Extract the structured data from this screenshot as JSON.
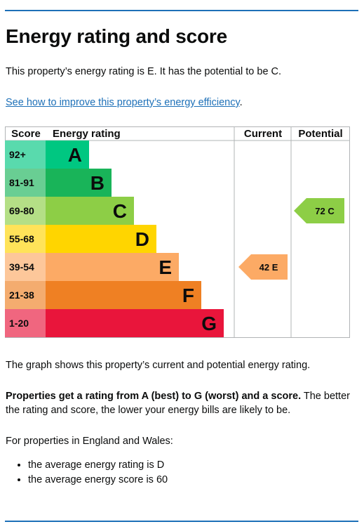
{
  "heading": "Energy rating and score",
  "intro": "This property’s energy rating is E. It has the potential to be C.",
  "improve_link": "See how to improve this property’s energy efficiency",
  "improve_link_suffix": ".",
  "chart_data": {
    "type": "table",
    "columns": [
      "Score",
      "Energy rating",
      "Current",
      "Potential"
    ],
    "bands": [
      {
        "range": "92+",
        "letter": "A",
        "color": "#00c781"
      },
      {
        "range": "81-91",
        "letter": "B",
        "color": "#19b459"
      },
      {
        "range": "69-80",
        "letter": "C",
        "color": "#8dce46"
      },
      {
        "range": "55-68",
        "letter": "D",
        "color": "#ffd500"
      },
      {
        "range": "39-54",
        "letter": "E",
        "color": "#fcaa65"
      },
      {
        "range": "21-38",
        "letter": "F",
        "color": "#ef8023"
      },
      {
        "range": "1-20",
        "letter": "G",
        "color": "#e9153b"
      }
    ],
    "current": {
      "score": 42,
      "rating": "E",
      "label": "42 E",
      "color": "#fcaa65"
    },
    "potential": {
      "score": 72,
      "rating": "C",
      "label": "72 C",
      "color": "#8dce46"
    }
  },
  "graph_note": "The graph shows this property’s current and potential energy rating.",
  "ratings_bold": "Properties get a rating from A (best) to G (worst) and a score.",
  "ratings_rest": " The better the rating and score, the lower your energy bills are likely to be.",
  "regions_note": "For properties in England and Wales:",
  "averages": [
    "the average energy rating is D",
    "the average energy score is 60"
  ]
}
